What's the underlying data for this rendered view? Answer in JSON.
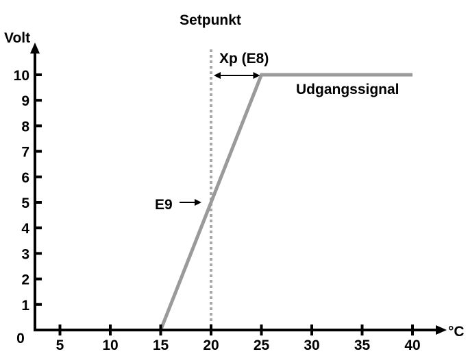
{
  "chart_data": {
    "type": "line",
    "title": "Setpunkt",
    "ylabel": "Volt",
    "xlabel": "°C",
    "origin_label": "0",
    "x_ticks": [
      5,
      10,
      15,
      20,
      25,
      30,
      35,
      40
    ],
    "y_ticks": [
      1,
      2,
      3,
      4,
      5,
      6,
      7,
      8,
      9,
      10
    ],
    "xlim": [
      0,
      42
    ],
    "ylim": [
      0,
      10
    ],
    "grid": false,
    "series": [
      {
        "name": "Udgangssignal",
        "x": [
          15,
          25,
          40
        ],
        "y": [
          0,
          10,
          10
        ]
      }
    ],
    "setpoint_x": 20,
    "annotations": {
      "xp": "Xp (E8)",
      "e9": "E9"
    },
    "colors": {
      "axis": "#000000",
      "series": "#9a9a9a",
      "setpoint": "#a8a8a8"
    }
  }
}
